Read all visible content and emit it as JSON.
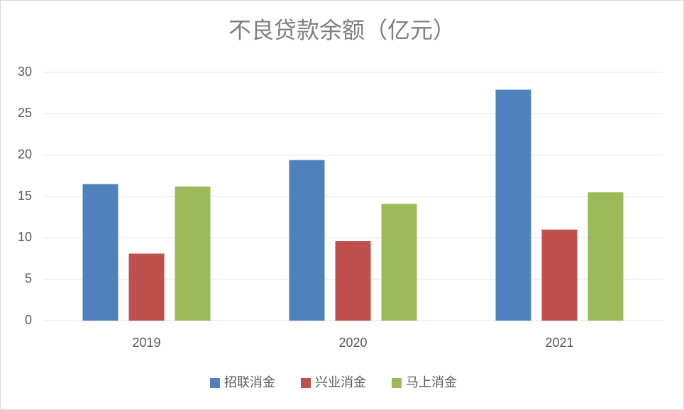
{
  "chart_data": {
    "type": "bar",
    "title": "不良贷款余额（亿元）",
    "categories": [
      "2019",
      "2020",
      "2021"
    ],
    "series": [
      {
        "name": "招联消金",
        "color": "#4f81bd",
        "values": [
          16.5,
          19.4,
          27.9
        ]
      },
      {
        "name": "兴业消金",
        "color": "#c0504d",
        "values": [
          8.1,
          9.6,
          11.0
        ]
      },
      {
        "name": "马上消金",
        "color": "#9bbb59",
        "values": [
          16.2,
          14.1,
          15.5
        ]
      }
    ],
    "ylim": [
      0,
      30
    ],
    "yticks": [
      0,
      5,
      10,
      15,
      20,
      25,
      30
    ],
    "grid": true,
    "legend": "bottom"
  }
}
